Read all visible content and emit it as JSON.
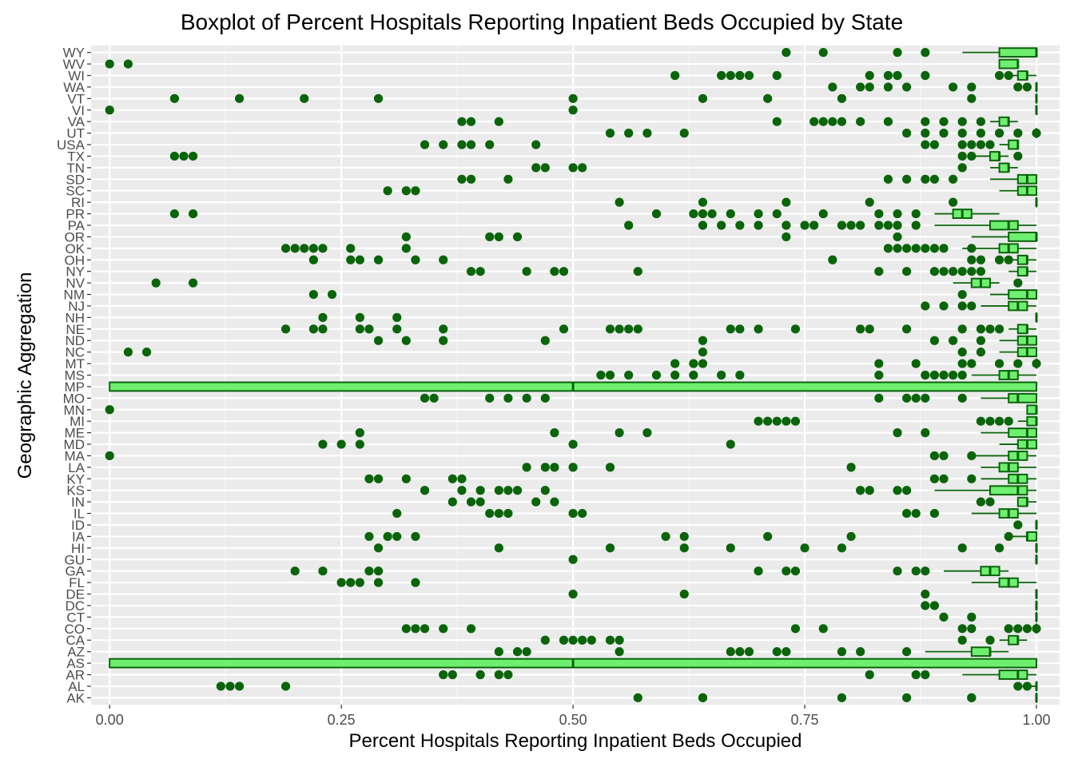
{
  "chart_data": {
    "type": "boxplot",
    "title": "Boxplot of Percent Hospitals Reporting Inpatient Beds Occupied by State",
    "xlabel": "Percent Hospitals Reporting Inpatient Beds Occupied",
    "ylabel": "Geographic Aggregation",
    "xlim": [
      -0.02,
      1.025
    ],
    "x_ticks": [
      0,
      0.25,
      0.5,
      0.75,
      1.0
    ],
    "x_tick_labels": [
      "0.00",
      "0.25",
      "0.50",
      "0.75",
      "1.00"
    ],
    "grid": true,
    "colors": {
      "panel": "#EBEBEB",
      "grid": "#FFFFFF",
      "box_fill": "#6FEF6F",
      "box_line": "#0A640A",
      "outlier": "#0A640A"
    },
    "categories": [
      "AK",
      "AL",
      "AR",
      "AS",
      "AZ",
      "CA",
      "CO",
      "CT",
      "DC",
      "DE",
      "FL",
      "GA",
      "GU",
      "HI",
      "IA",
      "ID",
      "IL",
      "IN",
      "KS",
      "KY",
      "LA",
      "MA",
      "MD",
      "ME",
      "MI",
      "MN",
      "MO",
      "MP",
      "MS",
      "MT",
      "NC",
      "ND",
      "NE",
      "NH",
      "NJ",
      "NM",
      "NV",
      "NY",
      "OH",
      "OK",
      "OR",
      "PA",
      "PR",
      "RI",
      "SC",
      "SD",
      "TN",
      "TX",
      "USA",
      "UT",
      "VA",
      "VI",
      "VT",
      "WA",
      "WI",
      "WV",
      "WY"
    ],
    "boxes": [
      {
        "state": "AK",
        "whisker_low": 1.0,
        "q1": 1.0,
        "median": 1.0,
        "q3": 1.0,
        "whisker_high": 1.0,
        "outliers": [
          0.57,
          0.64,
          0.64,
          0.79,
          0.86,
          0.93,
          0.93
        ]
      },
      {
        "state": "AL",
        "whisker_low": 0.98,
        "q1": 1.0,
        "median": 1.0,
        "q3": 1.0,
        "whisker_high": 1.0,
        "outliers": [
          0.12,
          0.13,
          0.14,
          0.19,
          0.98,
          0.99
        ]
      },
      {
        "state": "AR",
        "whisker_low": 0.92,
        "q1": 0.96,
        "median": 0.98,
        "q3": 0.99,
        "whisker_high": 1.0,
        "outliers": [
          0.36,
          0.37,
          0.4,
          0.42,
          0.43,
          0.82,
          0.87,
          0.88
        ]
      },
      {
        "state": "AS",
        "whisker_low": 0.0,
        "q1": 0.0,
        "median": 0.5,
        "q3": 1.0,
        "whisker_high": 1.0,
        "outliers": []
      },
      {
        "state": "AZ",
        "whisker_low": 0.88,
        "q1": 0.93,
        "median": 0.95,
        "q3": 0.95,
        "whisker_high": 0.97,
        "outliers": [
          0.42,
          0.44,
          0.45,
          0.55,
          0.67,
          0.68,
          0.69,
          0.72,
          0.73,
          0.79,
          0.81,
          0.86
        ]
      },
      {
        "state": "CA",
        "whisker_low": 0.96,
        "q1": 0.97,
        "median": 0.98,
        "q3": 0.98,
        "whisker_high": 0.99,
        "outliers": [
          0.47,
          0.49,
          0.5,
          0.51,
          0.52,
          0.54,
          0.55,
          0.92,
          0.95
        ]
      },
      {
        "state": "CO",
        "whisker_low": 1.0,
        "q1": 1.0,
        "median": 1.0,
        "q3": 1.0,
        "whisker_high": 1.0,
        "outliers": [
          0.32,
          0.33,
          0.34,
          0.36,
          0.39,
          0.74,
          0.77,
          0.92,
          0.93,
          0.97,
          0.98,
          0.99,
          1.0
        ]
      },
      {
        "state": "CT",
        "whisker_low": 1.0,
        "q1": 1.0,
        "median": 1.0,
        "q3": 1.0,
        "whisker_high": 1.0,
        "outliers": [
          0.9,
          0.93
        ]
      },
      {
        "state": "DC",
        "whisker_low": 1.0,
        "q1": 1.0,
        "median": 1.0,
        "q3": 1.0,
        "whisker_high": 1.0,
        "outliers": [
          0.88,
          0.89
        ]
      },
      {
        "state": "DE",
        "whisker_low": 1.0,
        "q1": 1.0,
        "median": 1.0,
        "q3": 1.0,
        "whisker_high": 1.0,
        "outliers": [
          0.5,
          0.62,
          0.88
        ]
      },
      {
        "state": "FL",
        "whisker_low": 0.93,
        "q1": 0.96,
        "median": 0.97,
        "q3": 0.98,
        "whisker_high": 1.0,
        "outliers": [
          0.25,
          0.26,
          0.27,
          0.29,
          0.33
        ]
      },
      {
        "state": "GA",
        "whisker_low": 0.9,
        "q1": 0.94,
        "median": 0.95,
        "q3": 0.96,
        "whisker_high": 0.97,
        "outliers": [
          0.2,
          0.23,
          0.28,
          0.29,
          0.7,
          0.73,
          0.74,
          0.85,
          0.87,
          0.88
        ]
      },
      {
        "state": "GU",
        "whisker_low": 1.0,
        "q1": 1.0,
        "median": 1.0,
        "q3": 1.0,
        "whisker_high": 1.0,
        "outliers": [
          0.5
        ]
      },
      {
        "state": "HI",
        "whisker_low": 1.0,
        "q1": 1.0,
        "median": 1.0,
        "q3": 1.0,
        "whisker_high": 1.0,
        "outliers": [
          0.29,
          0.42,
          0.54,
          0.62,
          0.67,
          0.75,
          0.79,
          0.92,
          0.96
        ]
      },
      {
        "state": "IA",
        "whisker_low": 0.97,
        "q1": 0.99,
        "median": 0.99,
        "q3": 1.0,
        "whisker_high": 1.0,
        "outliers": [
          0.28,
          0.3,
          0.31,
          0.33,
          0.6,
          0.62,
          0.71,
          0.8,
          0.97
        ]
      },
      {
        "state": "ID",
        "whisker_low": 1.0,
        "q1": 1.0,
        "median": 1.0,
        "q3": 1.0,
        "whisker_high": 1.0,
        "outliers": [
          0.98
        ]
      },
      {
        "state": "IL",
        "whisker_low": 0.93,
        "q1": 0.96,
        "median": 0.97,
        "q3": 0.98,
        "whisker_high": 1.0,
        "outliers": [
          0.31,
          0.41,
          0.42,
          0.43,
          0.5,
          0.51,
          0.86,
          0.87,
          0.89
        ]
      },
      {
        "state": "IN",
        "whisker_low": 0.98,
        "q1": 0.98,
        "median": 0.99,
        "q3": 0.99,
        "whisker_high": 1.0,
        "outliers": [
          0.37,
          0.39,
          0.4,
          0.46,
          0.48,
          0.94,
          0.95
        ]
      },
      {
        "state": "KS",
        "whisker_low": 0.89,
        "q1": 0.95,
        "median": 0.98,
        "q3": 0.99,
        "whisker_high": 1.0,
        "outliers": [
          0.34,
          0.38,
          0.4,
          0.42,
          0.43,
          0.44,
          0.47,
          0.81,
          0.82,
          0.85,
          0.86
        ]
      },
      {
        "state": "KY",
        "whisker_low": 0.94,
        "q1": 0.97,
        "median": 0.98,
        "q3": 0.99,
        "whisker_high": 1.0,
        "outliers": [
          0.28,
          0.29,
          0.32,
          0.37,
          0.38,
          0.89,
          0.9,
          0.93
        ]
      },
      {
        "state": "LA",
        "whisker_low": 0.94,
        "q1": 0.96,
        "median": 0.97,
        "q3": 0.98,
        "whisker_high": 1.0,
        "outliers": [
          0.45,
          0.47,
          0.48,
          0.5,
          0.54,
          0.8
        ]
      },
      {
        "state": "MA",
        "whisker_low": 0.93,
        "q1": 0.97,
        "median": 0.98,
        "q3": 0.99,
        "whisker_high": 1.0,
        "outliers": [
          0.0,
          0.89,
          0.9,
          0.93
        ]
      },
      {
        "state": "MD",
        "whisker_low": 0.96,
        "q1": 0.98,
        "median": 0.99,
        "q3": 1.0,
        "whisker_high": 1.0,
        "outliers": [
          0.23,
          0.25,
          0.27,
          0.5,
          0.67
        ]
      },
      {
        "state": "ME",
        "whisker_low": 0.94,
        "q1": 0.97,
        "median": 0.99,
        "q3": 1.0,
        "whisker_high": 1.0,
        "outliers": [
          0.27,
          0.48,
          0.55,
          0.58,
          0.85,
          0.88
        ]
      },
      {
        "state": "MI",
        "whisker_low": 0.98,
        "q1": 0.99,
        "median": 1.0,
        "q3": 1.0,
        "whisker_high": 1.0,
        "outliers": [
          0.7,
          0.71,
          0.72,
          0.73,
          0.74,
          0.94,
          0.95,
          0.96,
          0.97
        ]
      },
      {
        "state": "MN",
        "whisker_low": 0.99,
        "q1": 0.99,
        "median": 1.0,
        "q3": 1.0,
        "whisker_high": 1.0,
        "outliers": [
          0.0
        ]
      },
      {
        "state": "MO",
        "whisker_low": 0.94,
        "q1": 0.97,
        "median": 0.98,
        "q3": 1.0,
        "whisker_high": 1.0,
        "outliers": [
          0.34,
          0.35,
          0.41,
          0.43,
          0.45,
          0.47,
          0.83,
          0.86,
          0.87,
          0.88,
          0.92
        ]
      },
      {
        "state": "MP",
        "whisker_low": 0.0,
        "q1": 0.0,
        "median": 0.5,
        "q3": 1.0,
        "whisker_high": 1.0,
        "outliers": []
      },
      {
        "state": "MS",
        "whisker_low": 0.93,
        "q1": 0.96,
        "median": 0.97,
        "q3": 0.98,
        "whisker_high": 1.0,
        "outliers": [
          0.53,
          0.54,
          0.56,
          0.59,
          0.61,
          0.63,
          0.66,
          0.68,
          0.83,
          0.88,
          0.89,
          0.9,
          0.91,
          0.92
        ]
      },
      {
        "state": "MT",
        "whisker_low": 1.0,
        "q1": 1.0,
        "median": 1.0,
        "q3": 1.0,
        "whisker_high": 1.0,
        "outliers": [
          0.61,
          0.63,
          0.64,
          0.83,
          0.87,
          0.92,
          0.93,
          0.96,
          0.98,
          1.0
        ]
      },
      {
        "state": "NC",
        "whisker_low": 0.96,
        "q1": 0.98,
        "median": 0.99,
        "q3": 1.0,
        "whisker_high": 1.0,
        "outliers": [
          0.02,
          0.04,
          0.64,
          0.92,
          0.94
        ]
      },
      {
        "state": "ND",
        "whisker_low": 0.96,
        "q1": 0.98,
        "median": 0.99,
        "q3": 1.0,
        "whisker_high": 1.0,
        "outliers": [
          0.29,
          0.32,
          0.36,
          0.47,
          0.64,
          0.89,
          0.91,
          0.94
        ]
      },
      {
        "state": "NE",
        "whisker_low": 0.97,
        "q1": 0.98,
        "median": 0.99,
        "q3": 0.99,
        "whisker_high": 1.0,
        "outliers": [
          0.19,
          0.22,
          0.23,
          0.27,
          0.28,
          0.31,
          0.36,
          0.49,
          0.54,
          0.55,
          0.56,
          0.57,
          0.67,
          0.68,
          0.7,
          0.74,
          0.81,
          0.82,
          0.86,
          0.92,
          0.94,
          0.95,
          0.96
        ]
      },
      {
        "state": "NH",
        "whisker_low": 1.0,
        "q1": 1.0,
        "median": 1.0,
        "q3": 1.0,
        "whisker_high": 1.0,
        "outliers": [
          0.23,
          0.27,
          0.31
        ]
      },
      {
        "state": "NJ",
        "whisker_low": 0.94,
        "q1": 0.97,
        "median": 0.98,
        "q3": 0.99,
        "whisker_high": 1.0,
        "outliers": [
          0.88,
          0.9,
          0.92,
          0.93
        ]
      },
      {
        "state": "NM",
        "whisker_low": 0.95,
        "q1": 0.97,
        "median": 0.99,
        "q3": 1.0,
        "whisker_high": 1.0,
        "outliers": [
          0.22,
          0.24,
          0.92
        ]
      },
      {
        "state": "NV",
        "whisker_low": 0.91,
        "q1": 0.93,
        "median": 0.94,
        "q3": 0.95,
        "whisker_high": 0.96,
        "outliers": [
          0.05,
          0.09,
          0.98
        ]
      },
      {
        "state": "NY",
        "whisker_low": 0.97,
        "q1": 0.98,
        "median": 0.99,
        "q3": 0.99,
        "whisker_high": 1.0,
        "outliers": [
          0.39,
          0.4,
          0.45,
          0.48,
          0.49,
          0.57,
          0.83,
          0.86,
          0.89,
          0.9,
          0.91,
          0.92,
          0.93,
          0.94
        ]
      },
      {
        "state": "OH",
        "whisker_low": 0.97,
        "q1": 0.98,
        "median": 0.99,
        "q3": 0.99,
        "whisker_high": 1.0,
        "outliers": [
          0.22,
          0.26,
          0.27,
          0.29,
          0.33,
          0.36,
          0.78,
          0.93,
          0.94,
          0.96,
          0.97
        ]
      },
      {
        "state": "OK",
        "whisker_low": 0.92,
        "q1": 0.96,
        "median": 0.97,
        "q3": 0.98,
        "whisker_high": 1.0,
        "outliers": [
          0.19,
          0.2,
          0.21,
          0.22,
          0.23,
          0.26,
          0.32,
          0.84,
          0.85,
          0.86,
          0.87,
          0.88,
          0.89,
          0.9,
          0.93
        ]
      },
      {
        "state": "OR",
        "whisker_low": 0.93,
        "q1": 0.97,
        "median": 1.0,
        "q3": 1.0,
        "whisker_high": 1.0,
        "outliers": [
          0.32,
          0.41,
          0.42,
          0.44,
          0.73,
          0.85
        ]
      },
      {
        "state": "PA",
        "whisker_low": 0.89,
        "q1": 0.95,
        "median": 0.97,
        "q3": 0.98,
        "whisker_high": 1.0,
        "outliers": [
          0.56,
          0.64,
          0.66,
          0.68,
          0.7,
          0.73,
          0.75,
          0.76,
          0.79,
          0.8,
          0.81,
          0.83,
          0.84,
          0.85,
          0.87
        ]
      },
      {
        "state": "PR",
        "whisker_low": 0.89,
        "q1": 0.91,
        "median": 0.92,
        "q3": 0.93,
        "whisker_high": 0.96,
        "outliers": [
          0.07,
          0.09,
          0.59,
          0.63,
          0.64,
          0.65,
          0.67,
          0.7,
          0.72,
          0.77,
          0.83,
          0.85,
          0.87
        ]
      },
      {
        "state": "RI",
        "whisker_low": 1.0,
        "q1": 1.0,
        "median": 1.0,
        "q3": 1.0,
        "whisker_high": 1.0,
        "outliers": [
          0.55,
          0.64,
          0.73,
          0.82,
          0.91
        ]
      },
      {
        "state": "SC",
        "whisker_low": 0.96,
        "q1": 0.98,
        "median": 0.99,
        "q3": 1.0,
        "whisker_high": 1.0,
        "outliers": [
          0.3,
          0.32,
          0.33
        ]
      },
      {
        "state": "SD",
        "whisker_low": 0.95,
        "q1": 0.98,
        "median": 0.99,
        "q3": 1.0,
        "whisker_high": 1.0,
        "outliers": [
          0.38,
          0.39,
          0.43,
          0.84,
          0.86,
          0.88,
          0.89,
          0.91
        ]
      },
      {
        "state": "TN",
        "whisker_low": 0.95,
        "q1": 0.96,
        "median": 0.97,
        "q3": 0.97,
        "whisker_high": 0.98,
        "outliers": [
          0.46,
          0.47,
          0.5,
          0.51,
          0.92
        ]
      },
      {
        "state": "TX",
        "whisker_low": 0.93,
        "q1": 0.95,
        "median": 0.96,
        "q3": 0.96,
        "whisker_high": 0.97,
        "outliers": [
          0.07,
          0.08,
          0.09,
          0.92,
          0.93,
          0.98
        ]
      },
      {
        "state": "USA",
        "whisker_low": 0.96,
        "q1": 0.97,
        "median": 0.98,
        "q3": 0.98,
        "whisker_high": 0.98,
        "outliers": [
          0.34,
          0.36,
          0.38,
          0.39,
          0.41,
          0.46,
          0.88,
          0.89,
          0.92,
          0.93,
          0.94,
          0.95
        ]
      },
      {
        "state": "UT",
        "whisker_low": 1.0,
        "q1": 1.0,
        "median": 1.0,
        "q3": 1.0,
        "whisker_high": 1.0,
        "outliers": [
          0.54,
          0.56,
          0.58,
          0.62,
          0.86,
          0.88,
          0.9,
          0.92,
          0.94,
          0.96,
          0.98,
          1.0
        ]
      },
      {
        "state": "VA",
        "whisker_low": 0.95,
        "q1": 0.96,
        "median": 0.97,
        "q3": 0.97,
        "whisker_high": 0.98,
        "outliers": [
          0.38,
          0.39,
          0.42,
          0.72,
          0.76,
          0.77,
          0.78,
          0.79,
          0.81,
          0.84,
          0.88,
          0.9,
          0.92,
          0.94
        ]
      },
      {
        "state": "VI",
        "whisker_low": 1.0,
        "q1": 1.0,
        "median": 1.0,
        "q3": 1.0,
        "whisker_high": 1.0,
        "outliers": [
          0.0,
          0.5
        ]
      },
      {
        "state": "VT",
        "whisker_low": 1.0,
        "q1": 1.0,
        "median": 1.0,
        "q3": 1.0,
        "whisker_high": 1.0,
        "outliers": [
          0.07,
          0.14,
          0.21,
          0.29,
          0.5,
          0.64,
          0.71,
          0.79,
          0.93
        ]
      },
      {
        "state": "WA",
        "whisker_low": 1.0,
        "q1": 1.0,
        "median": 1.0,
        "q3": 1.0,
        "whisker_high": 1.0,
        "outliers": [
          0.78,
          0.81,
          0.82,
          0.84,
          0.86,
          0.91,
          0.93,
          0.98,
          0.99
        ]
      },
      {
        "state": "WI",
        "whisker_low": 0.97,
        "q1": 0.98,
        "median": 0.99,
        "q3": 0.99,
        "whisker_high": 1.0,
        "outliers": [
          0.61,
          0.66,
          0.67,
          0.68,
          0.69,
          0.72,
          0.82,
          0.84,
          0.85,
          0.88,
          0.96,
          0.97
        ]
      },
      {
        "state": "WV",
        "whisker_low": 0.96,
        "q1": 0.96,
        "median": 0.98,
        "q3": 0.98,
        "whisker_high": 0.98,
        "outliers": [
          0.0,
          0.02
        ]
      },
      {
        "state": "WY",
        "whisker_low": 0.92,
        "q1": 0.96,
        "median": 1.0,
        "q3": 1.0,
        "whisker_high": 1.0,
        "outliers": [
          0.73,
          0.77,
          0.85,
          0.88
        ]
      }
    ]
  }
}
